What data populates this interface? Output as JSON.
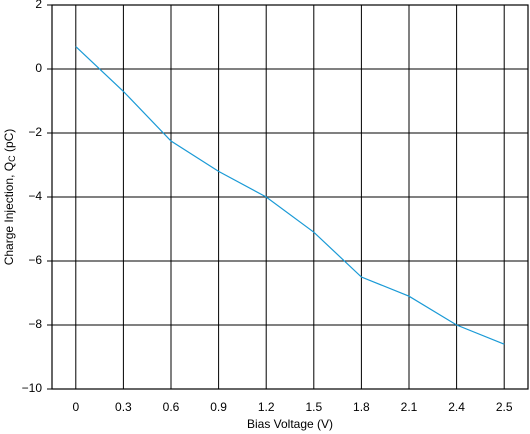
{
  "chart_data": {
    "type": "line",
    "xlabel": "Bias Voltage (V)",
    "ylabel": {
      "text": "Charge Injection, Q",
      "sub": "C",
      "tail": " (pC)"
    },
    "categories": [
      "0",
      "0.3",
      "0.6",
      "0.9",
      "1.2",
      "1.5",
      "1.8",
      "2.1",
      "2.4",
      "2.5"
    ],
    "series": [
      {
        "name": "Charge Injection",
        "color": "#1a9ad6",
        "values": [
          0.7,
          -0.7,
          -2.25,
          -3.2,
          -4.0,
          -5.1,
          -6.5,
          -7.1,
          -8.0,
          -8.6
        ]
      }
    ],
    "ylim": [
      -10,
      2
    ],
    "yticks": [
      {
        "value": -10,
        "label": "−10"
      },
      {
        "value": -8,
        "label": "−8"
      },
      {
        "value": -6,
        "label": "−6"
      },
      {
        "value": -4,
        "label": "−4"
      },
      {
        "value": -2,
        "label": "−2"
      },
      0,
      2
    ],
    "grid": true
  }
}
